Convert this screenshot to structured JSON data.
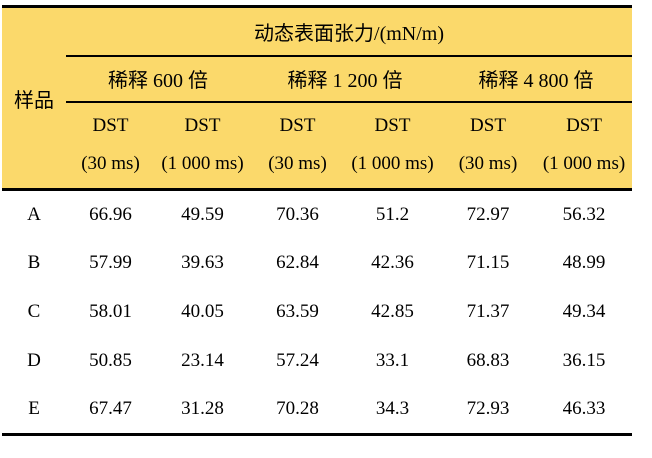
{
  "colors": {
    "header_bg": "#FBD96B",
    "border": "#000000",
    "text": "#000000"
  },
  "table": {
    "title": "动态表面张力/(mN/m)",
    "sample_header": "样品",
    "groups": [
      "稀释 600 倍",
      "稀释 1 200 倍",
      "稀释 4 800 倍"
    ],
    "sub_headers": [
      {
        "line1": "DST",
        "line2": "(30 ms)"
      },
      {
        "line1": "DST",
        "line2": "(1 000 ms)"
      },
      {
        "line1": "DST",
        "line2": "(30 ms)"
      },
      {
        "line1": "DST",
        "line2": "(1 000 ms)"
      },
      {
        "line1": "DST",
        "line2": "(30 ms)"
      },
      {
        "line1": "DST",
        "line2": "(1 000 ms)"
      }
    ],
    "rows": [
      {
        "sample": "A",
        "values": [
          "66.96",
          "49.59",
          "70.36",
          "51.2",
          "72.97",
          "56.32"
        ]
      },
      {
        "sample": "B",
        "values": [
          "57.99",
          "39.63",
          "62.84",
          "42.36",
          "71.15",
          "48.99"
        ]
      },
      {
        "sample": "C",
        "values": [
          "58.01",
          "40.05",
          "63.59",
          "42.85",
          "71.37",
          "49.34"
        ]
      },
      {
        "sample": "D",
        "values": [
          "50.85",
          "23.14",
          "57.24",
          "33.1",
          "68.83",
          "36.15"
        ]
      },
      {
        "sample": "E",
        "values": [
          "67.47",
          "31.28",
          "70.28",
          "34.3",
          "72.93",
          "46.33"
        ]
      }
    ]
  }
}
